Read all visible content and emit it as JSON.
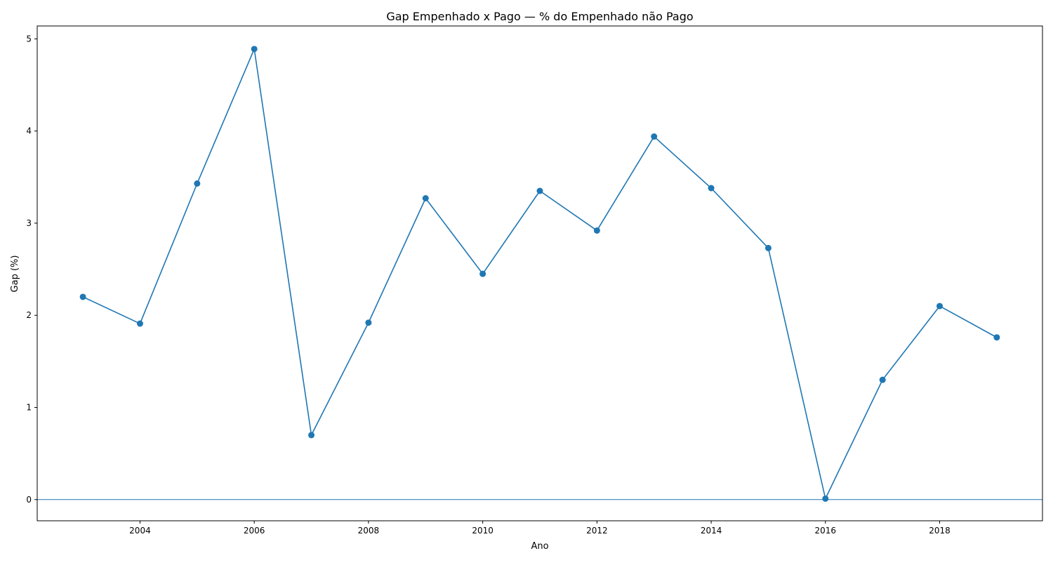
{
  "chart_data": {
    "type": "line",
    "title": "Gap Empenhado x Pago — % do Empenhado não Pago",
    "xlabel": "Ano",
    "ylabel": "Gap (%)",
    "xlim": [
      2002.2,
      2019.8
    ],
    "ylim": [
      -0.23,
      5.14
    ],
    "x_ticks": [
      2004,
      2006,
      2008,
      2010,
      2012,
      2014,
      2016,
      2018
    ],
    "y_ticks": [
      0,
      1,
      2,
      3,
      4,
      5
    ],
    "grid": false,
    "legend": "none",
    "reference_line": {
      "y": 0,
      "color": "#1f77b4"
    },
    "series": [
      {
        "color": "#1f77b4",
        "marker": "circle",
        "x": [
          2003,
          2004,
          2005,
          2006,
          2007,
          2008,
          2009,
          2010,
          2011,
          2012,
          2013,
          2014,
          2015,
          2016,
          2017,
          2018,
          2019
        ],
        "y": [
          2.2,
          1.91,
          3.43,
          4.89,
          0.7,
          1.92,
          3.27,
          2.45,
          3.35,
          2.92,
          3.94,
          3.38,
          2.73,
          0.01,
          1.3,
          2.1,
          1.76
        ]
      }
    ]
  }
}
